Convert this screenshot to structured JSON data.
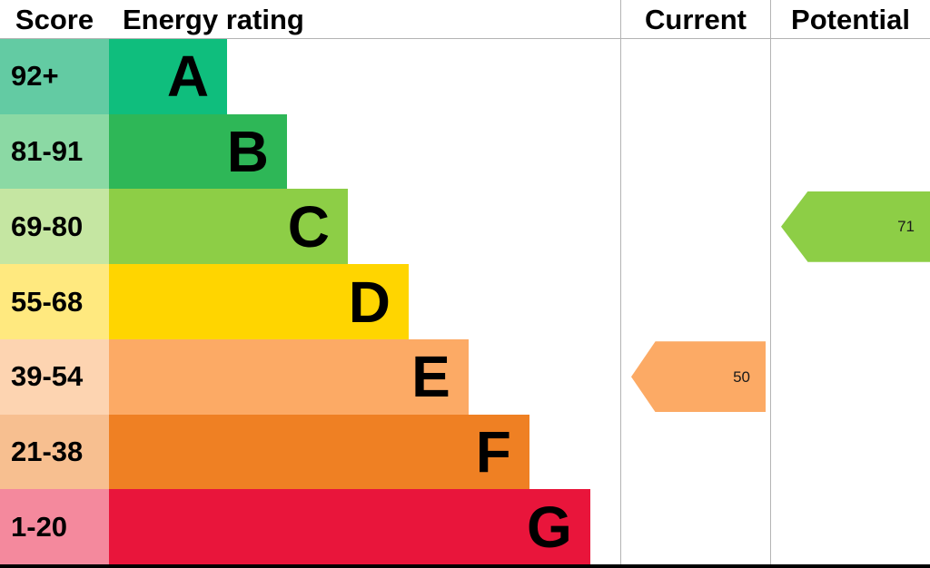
{
  "header": {
    "score": "Score",
    "energy_rating": "Energy rating",
    "current": "Current",
    "potential": "Potential"
  },
  "chart_data": {
    "type": "bar",
    "title": "Energy rating",
    "columns": [
      "Score",
      "Energy rating",
      "Current",
      "Potential"
    ],
    "bands": [
      {
        "score": "92+",
        "letter": "A",
        "color": "#0fbe7d",
        "score_cell_color": "#63cba3",
        "bar_pct": 23.1
      },
      {
        "score": "81-91",
        "letter": "B",
        "color": "#2eb757",
        "score_cell_color": "#8bd9a4",
        "bar_pct": 34.8
      },
      {
        "score": "69-80",
        "letter": "C",
        "color": "#8dce46",
        "score_cell_color": "#c5e6a2",
        "bar_pct": 46.7
      },
      {
        "score": "55-68",
        "letter": "D",
        "color": "#ffd500",
        "score_cell_color": "#ffe97f",
        "bar_pct": 58.6
      },
      {
        "score": "39-54",
        "letter": "E",
        "color": "#fcaa65",
        "score_cell_color": "#fdd4b1",
        "bar_pct": 70.3
      },
      {
        "score": "21-38",
        "letter": "F",
        "color": "#ef8023",
        "score_cell_color": "#f7bf90",
        "bar_pct": 82.2
      },
      {
        "score": "1-20",
        "letter": "G",
        "color": "#e9153b",
        "score_cell_color": "#f4899d",
        "bar_pct": 94.1
      }
    ],
    "current": {
      "value": "50",
      "band": "E",
      "color": "#fcaa65"
    },
    "potential": {
      "value": "71",
      "band": "C",
      "color": "#8dce46"
    }
  }
}
